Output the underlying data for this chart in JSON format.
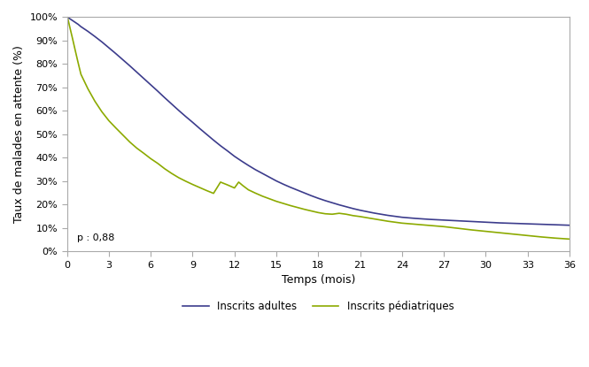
{
  "title": "",
  "xlabel": "Temps (mois)",
  "ylabel": "Taux de malades en attente (%)",
  "annotation": "p : 0,88",
  "xlim": [
    0,
    36
  ],
  "ylim": [
    0,
    1.0
  ],
  "xticks": [
    0,
    3,
    6,
    9,
    12,
    15,
    18,
    21,
    24,
    27,
    30,
    33,
    36
  ],
  "yticks": [
    0.0,
    0.1,
    0.2,
    0.3,
    0.4,
    0.5,
    0.6,
    0.7,
    0.8,
    0.9,
    1.0
  ],
  "ytick_labels": [
    "0%",
    "10%",
    "20%",
    "30%",
    "40%",
    "50%",
    "60%",
    "70%",
    "80%",
    "90%",
    "100%"
  ],
  "legend_adultes": "Inscrits adultes",
  "legend_pediatriques": "Inscrits pédiatriques",
  "color_adultes": "#3c3c8c",
  "color_pediatriques": "#8caa00",
  "background_color": "#ffffff",
  "adultes_x": [
    0,
    0.05,
    0.1,
    0.2,
    0.4,
    0.6,
    0.8,
    1.0,
    1.5,
    2.0,
    2.5,
    3.0,
    3.5,
    4.0,
    4.5,
    5.0,
    5.5,
    6.0,
    6.5,
    7.0,
    7.5,
    8.0,
    8.5,
    9.0,
    9.5,
    10.0,
    10.5,
    11.0,
    11.5,
    12.0,
    12.5,
    13.0,
    13.5,
    14.0,
    14.5,
    15.0,
    15.5,
    16.0,
    16.5,
    17.0,
    17.5,
    18.0,
    18.5,
    19.0,
    19.5,
    20.0,
    20.5,
    21.0,
    21.5,
    22.0,
    22.5,
    23.0,
    23.5,
    24.0,
    25.0,
    26.0,
    27.0,
    28.0,
    29.0,
    30.0,
    31.0,
    32.0,
    33.0,
    34.0,
    35.0,
    36.0
  ],
  "adultes_y": [
    1.0,
    0.998,
    0.996,
    0.992,
    0.984,
    0.976,
    0.968,
    0.958,
    0.938,
    0.916,
    0.893,
    0.868,
    0.843,
    0.817,
    0.791,
    0.764,
    0.737,
    0.71,
    0.683,
    0.655,
    0.628,
    0.601,
    0.575,
    0.55,
    0.524,
    0.499,
    0.474,
    0.45,
    0.428,
    0.405,
    0.385,
    0.366,
    0.348,
    0.332,
    0.316,
    0.3,
    0.286,
    0.273,
    0.261,
    0.249,
    0.237,
    0.226,
    0.216,
    0.207,
    0.198,
    0.19,
    0.182,
    0.175,
    0.169,
    0.163,
    0.158,
    0.153,
    0.149,
    0.145,
    0.14,
    0.136,
    0.133,
    0.13,
    0.127,
    0.124,
    0.121,
    0.119,
    0.117,
    0.115,
    0.113,
    0.111
  ],
  "pediatriques_x": [
    0,
    0.05,
    0.1,
    0.15,
    0.2,
    0.3,
    0.4,
    0.5,
    0.6,
    0.8,
    1.0,
    1.5,
    2.0,
    2.5,
    3.0,
    3.5,
    4.0,
    4.5,
    5.0,
    5.5,
    6.0,
    6.5,
    7.0,
    7.5,
    8.0,
    8.5,
    9.0,
    9.5,
    10.0,
    10.5,
    11.0,
    11.5,
    12.0,
    12.3,
    12.6,
    13.0,
    13.5,
    14.0,
    14.5,
    15.0,
    15.5,
    16.0,
    16.5,
    17.0,
    17.5,
    18.0,
    18.5,
    19.0,
    19.5,
    20.0,
    20.5,
    21.0,
    21.5,
    22.0,
    22.5,
    23.0,
    23.5,
    24.0,
    25.0,
    26.0,
    27.0,
    28.0,
    29.0,
    30.0,
    31.0,
    32.0,
    33.0,
    34.0,
    35.0,
    36.0
  ],
  "pediatriques_y": [
    1.0,
    0.993,
    0.983,
    0.97,
    0.957,
    0.932,
    0.907,
    0.881,
    0.855,
    0.804,
    0.755,
    0.693,
    0.64,
    0.595,
    0.557,
    0.526,
    0.496,
    0.466,
    0.44,
    0.418,
    0.395,
    0.375,
    0.352,
    0.332,
    0.314,
    0.299,
    0.285,
    0.272,
    0.259,
    0.247,
    0.295,
    0.283,
    0.27,
    0.295,
    0.28,
    0.262,
    0.248,
    0.235,
    0.224,
    0.213,
    0.204,
    0.195,
    0.187,
    0.179,
    0.172,
    0.165,
    0.16,
    0.158,
    0.162,
    0.158,
    0.152,
    0.148,
    0.143,
    0.138,
    0.133,
    0.128,
    0.124,
    0.12,
    0.115,
    0.11,
    0.105,
    0.098,
    0.091,
    0.085,
    0.079,
    0.073,
    0.067,
    0.061,
    0.056,
    0.052
  ]
}
